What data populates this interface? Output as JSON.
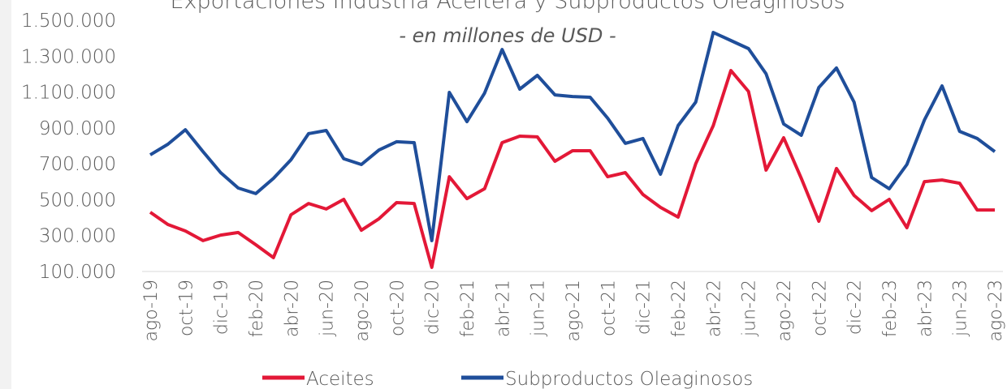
{
  "chart_data": {
    "type": "line",
    "title": "Exportaciones Industria Aceitera y Subproductos Oleaginosos",
    "subtitle": "- en millones de USD -",
    "categories": [
      "ago-19",
      null,
      "oct-19",
      null,
      "dic-19",
      null,
      "feb-20",
      null,
      "abr-20",
      null,
      "jun-20",
      null,
      "ago-20",
      null,
      "oct-20",
      null,
      "dic-20",
      null,
      "feb-21",
      null,
      "abr-21",
      null,
      "jun-21",
      null,
      "ago-21",
      null,
      "oct-21",
      null,
      "dic-21",
      null,
      "feb-22",
      null,
      "abr-22",
      null,
      "jun-22",
      null,
      "ago-22",
      null,
      "oct-22",
      null,
      "dic-22",
      null,
      "feb-23",
      null,
      "abr-23",
      null,
      "jun-23",
      null,
      "ago-23"
    ],
    "series": [
      {
        "name": "Aceites",
        "color": "#e31837",
        "values": [
          430000,
          362000,
          326000,
          272000,
          303000,
          317000,
          249000,
          177000,
          416000,
          479000,
          448000,
          502000,
          330000,
          394000,
          484000,
          479000,
          123000,
          628000,
          506000,
          561000,
          818000,
          854000,
          850000,
          714000,
          773000,
          773000,
          628000,
          651000,
          529000,
          457000,
          403000,
          700000,
          913000,
          1220000,
          1103000,
          665000,
          845000,
          619000,
          380000,
          674000,
          524000,
          439000,
          502000,
          344000,
          601000,
          610000,
          592000,
          443000,
          443000
        ]
      },
      {
        "name": "Subproductos Oleaginosos",
        "color": "#1f4e9a",
        "values": [
          750000,
          809000,
          890000,
          768000,
          651000,
          565000,
          534000,
          619000,
          723000,
          868000,
          886000,
          728000,
          696000,
          777000,
          823000,
          818000,
          272000,
          1098000,
          935000,
          1094000,
          1337000,
          1116000,
          1193000,
          1084000,
          1075000,
          1071000,
          954000,
          814000,
          841000,
          642000,
          913000,
          1044000,
          1432000,
          1387000,
          1342000,
          1202000,
          922000,
          859000,
          1125000,
          1234000,
          1044000,
          624000,
          561000,
          696000,
          944000,
          1134000,
          881000,
          841000,
          768000
        ]
      }
    ],
    "ylim": [
      100000,
      1500000
    ],
    "yticks": [
      {
        "value": 100000,
        "label": "100.000"
      },
      {
        "value": 300000,
        "label": "300.000"
      },
      {
        "value": 500000,
        "label": "500.000"
      },
      {
        "value": 700000,
        "label": "700.000"
      },
      {
        "value": 900000,
        "label": "900.000"
      },
      {
        "value": 1100000,
        "label": "1.100.000"
      },
      {
        "value": 1300000,
        "label": "1.300.000"
      },
      {
        "value": 1500000,
        "label": "1.500.000"
      }
    ],
    "legend": "bottom"
  }
}
